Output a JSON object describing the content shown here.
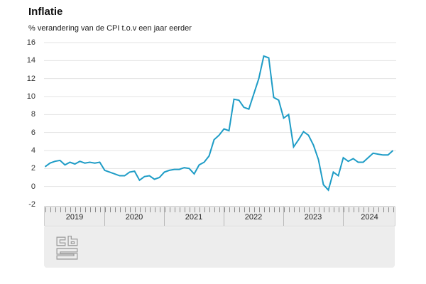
{
  "header": {
    "title": "Inflatie",
    "subtitle": "% verandering van de CPI t.o.v een jaar eerder"
  },
  "colors": {
    "line": "#1e9cc6",
    "grid": "#e3e3e3",
    "panel": "#ededed",
    "axis_text": "#333333",
    "logo": "#9c9c9c"
  },
  "footer": {
    "logo_name": "CBS"
  },
  "chart_data": {
    "type": "line",
    "title": "Inflatie",
    "ylabel": "% verandering van de CPI t.o.v een jaar eerder",
    "x_range": "2019-01 t/m 2024-11",
    "grid": true,
    "legend": "none",
    "ylim": [
      -2,
      16
    ],
    "y_ticks": [
      16,
      14,
      12,
      10,
      8,
      6,
      4,
      2,
      0,
      -2
    ],
    "year_labels": [
      "2019",
      "2020",
      "2021",
      "2022",
      "2023",
      "2024"
    ],
    "series_name": "Inflatie (CPI, % t.o.v. jaar eerder)",
    "values_by_year": {
      "2019": [
        2.2,
        2.6,
        2.8,
        2.9,
        2.4,
        2.7,
        2.5,
        2.8,
        2.6,
        2.7,
        2.6,
        2.7
      ],
      "2020": [
        1.8,
        1.6,
        1.4,
        1.2,
        1.2,
        1.6,
        1.7,
        0.7,
        1.1,
        1.2,
        0.8,
        1.0
      ],
      "2021": [
        1.6,
        1.8,
        1.9,
        1.9,
        2.1,
        2.0,
        1.4,
        2.4,
        2.7,
        3.4,
        5.2,
        5.7
      ],
      "2022": [
        6.4,
        6.2,
        9.7,
        9.6,
        8.8,
        8.6,
        10.3,
        12.0,
        14.5,
        14.3,
        9.9,
        9.6
      ],
      "2023": [
        7.6,
        8.0,
        4.4,
        5.2,
        6.1,
        5.7,
        4.6,
        3.0,
        0.2,
        -0.4,
        1.6,
        1.2
      ],
      "2024": [
        3.2,
        2.8,
        3.1,
        2.7,
        2.7,
        3.2,
        3.7,
        3.6,
        3.5,
        3.5,
        4.0
      ]
    }
  }
}
